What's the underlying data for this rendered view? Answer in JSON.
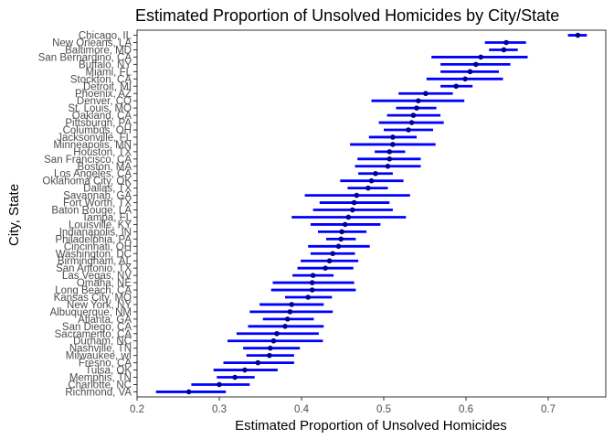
{
  "chart_data": {
    "type": "scatter",
    "title": "Estimated Proportion of Unsolved Homicides by City/State",
    "xlabel": "Estimated Proportion of Unsolved Homicides",
    "ylabel": "City, State",
    "xlim": [
      0.2,
      0.77
    ],
    "x_ticks": [
      "0.2",
      "0.3",
      "0.4",
      "0.5",
      "0.6",
      "0.7"
    ],
    "grid": false,
    "error_bars": true,
    "colors": {
      "interval": "#0000ff",
      "point": "#00008b",
      "frame": "#333333"
    },
    "points": [
      {
        "city": "Chicago, IL",
        "estimate": 0.736,
        "low": 0.724,
        "high": 0.747
      },
      {
        "city": "New Orleans, LA",
        "estimate": 0.649,
        "low": 0.623,
        "high": 0.673
      },
      {
        "city": "Baltimore, MD",
        "estimate": 0.646,
        "low": 0.628,
        "high": 0.663
      },
      {
        "city": "San Bernardino, CA",
        "estimate": 0.618,
        "low": 0.558,
        "high": 0.675
      },
      {
        "city": "Buffalo, NY",
        "estimate": 0.612,
        "low": 0.569,
        "high": 0.654
      },
      {
        "city": "Miami, FL",
        "estimate": 0.605,
        "low": 0.569,
        "high": 0.64
      },
      {
        "city": "Stockton, CA",
        "estimate": 0.599,
        "low": 0.552,
        "high": 0.645
      },
      {
        "city": "Detroit, MI",
        "estimate": 0.588,
        "low": 0.569,
        "high": 0.608
      },
      {
        "city": "Phoenix, AZ",
        "estimate": 0.551,
        "low": 0.518,
        "high": 0.584
      },
      {
        "city": "Denver, CO",
        "estimate": 0.542,
        "low": 0.485,
        "high": 0.598
      },
      {
        "city": "St. Louis, MO",
        "estimate": 0.54,
        "low": 0.515,
        "high": 0.564
      },
      {
        "city": "Oakland, CA",
        "estimate": 0.536,
        "low": 0.504,
        "high": 0.569
      },
      {
        "city": "Pittsburgh, PA",
        "estimate": 0.534,
        "low": 0.494,
        "high": 0.573
      },
      {
        "city": "Columbus, OH",
        "estimate": 0.53,
        "low": 0.5,
        "high": 0.56
      },
      {
        "city": "Jacksonville, FL",
        "estimate": 0.511,
        "low": 0.482,
        "high": 0.54
      },
      {
        "city": "Minneapolis, MN",
        "estimate": 0.511,
        "low": 0.459,
        "high": 0.563
      },
      {
        "city": "Houston, TX",
        "estimate": 0.507,
        "low": 0.489,
        "high": 0.526
      },
      {
        "city": "San Francisco, CA",
        "estimate": 0.507,
        "low": 0.468,
        "high": 0.545
      },
      {
        "city": "Boston, MA",
        "estimate": 0.505,
        "low": 0.465,
        "high": 0.545
      },
      {
        "city": "Los Angeles, CA",
        "estimate": 0.49,
        "low": 0.469,
        "high": 0.511
      },
      {
        "city": "Oklahoma City, OK",
        "estimate": 0.485,
        "low": 0.447,
        "high": 0.524
      },
      {
        "city": "Dallas, TX",
        "estimate": 0.481,
        "low": 0.456,
        "high": 0.505
      },
      {
        "city": "Savannah, GA",
        "estimate": 0.467,
        "low": 0.404,
        "high": 0.532
      },
      {
        "city": "Fort Worth, TX",
        "estimate": 0.464,
        "low": 0.422,
        "high": 0.507
      },
      {
        "city": "Baton Rouge, LA",
        "estimate": 0.462,
        "low": 0.414,
        "high": 0.511
      },
      {
        "city": "Tampa, FL",
        "estimate": 0.457,
        "low": 0.388,
        "high": 0.527
      },
      {
        "city": "Louisville, KY",
        "estimate": 0.453,
        "low": 0.411,
        "high": 0.496
      },
      {
        "city": "Indianapolis, IN",
        "estimate": 0.449,
        "low": 0.42,
        "high": 0.479
      },
      {
        "city": "Philadelphia, PA",
        "estimate": 0.448,
        "low": 0.43,
        "high": 0.466
      },
      {
        "city": "Cincinnati, OH",
        "estimate": 0.445,
        "low": 0.408,
        "high": 0.483
      },
      {
        "city": "Washington, DC",
        "estimate": 0.438,
        "low": 0.411,
        "high": 0.465
      },
      {
        "city": "Birmingham, AL",
        "estimate": 0.434,
        "low": 0.399,
        "high": 0.469
      },
      {
        "city": "San Antonio, TX",
        "estimate": 0.429,
        "low": 0.395,
        "high": 0.463
      },
      {
        "city": "Las Vegas, NV",
        "estimate": 0.414,
        "low": 0.389,
        "high": 0.439
      },
      {
        "city": "Omaha, NE",
        "estimate": 0.413,
        "low": 0.365,
        "high": 0.464
      },
      {
        "city": "Long Beach, CA",
        "estimate": 0.413,
        "low": 0.363,
        "high": 0.466
      },
      {
        "city": "Kansas City, MO",
        "estimate": 0.408,
        "low": 0.38,
        "high": 0.437
      },
      {
        "city": "New York, NY",
        "estimate": 0.388,
        "low": 0.349,
        "high": 0.427
      },
      {
        "city": "Albuquerque, NM",
        "estimate": 0.386,
        "low": 0.337,
        "high": 0.438
      },
      {
        "city": "Atlanta, GA",
        "estimate": 0.383,
        "low": 0.353,
        "high": 0.415
      },
      {
        "city": "San Diego, CA",
        "estimate": 0.38,
        "low": 0.335,
        "high": 0.427
      },
      {
        "city": "Sacramento, CA",
        "estimate": 0.37,
        "low": 0.321,
        "high": 0.421
      },
      {
        "city": "Durham, NC",
        "estimate": 0.366,
        "low": 0.31,
        "high": 0.426
      },
      {
        "city": "Nashville, TN",
        "estimate": 0.362,
        "low": 0.329,
        "high": 0.398
      },
      {
        "city": "Milwaukee, wI",
        "estimate": 0.361,
        "low": 0.333,
        "high": 0.391
      },
      {
        "city": "Fresno, CA",
        "estimate": 0.347,
        "low": 0.305,
        "high": 0.391
      },
      {
        "city": "Tulsa, OK",
        "estimate": 0.331,
        "low": 0.293,
        "high": 0.371
      },
      {
        "city": "Memphis, TN",
        "estimate": 0.319,
        "low": 0.297,
        "high": 0.343
      },
      {
        "city": "Charlotte, NC",
        "estimate": 0.3,
        "low": 0.266,
        "high": 0.337
      },
      {
        "city": "Richmond, VA",
        "estimate": 0.263,
        "low": 0.223,
        "high": 0.308
      }
    ]
  }
}
